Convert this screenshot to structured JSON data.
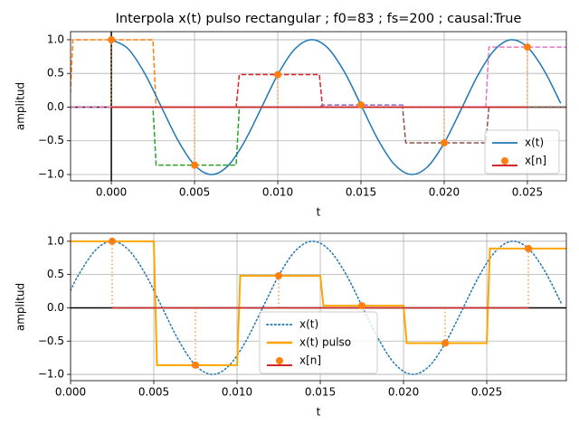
{
  "chart_data": [
    {
      "type": "line",
      "title": "Interpola x(t) pulso rectangular  ; f0=83 ; fs=200 ; causal:True",
      "xlabel": "t",
      "ylabel": "amplitud",
      "xlim": [
        -0.00245,
        0.02734
      ],
      "ylim": [
        -1.094,
        1.12
      ],
      "xticks": [
        {
          "value": 0,
          "label": "0.000"
        },
        {
          "value": 0.005,
          "label": "0.005"
        },
        {
          "value": 0.01,
          "label": "0.010"
        },
        {
          "value": 0.015,
          "label": "0.015"
        },
        {
          "value": 0.02,
          "label": "0.020"
        },
        {
          "value": 0.025,
          "label": "0.025"
        }
      ],
      "yticks": [
        {
          "value": -1,
          "label": "−1.0"
        },
        {
          "value": -0.5,
          "label": "−0.5"
        },
        {
          "value": 0,
          "label": "0.0"
        },
        {
          "value": 0.5,
          "label": "0.5"
        },
        {
          "value": 1,
          "label": "1.0"
        }
      ],
      "grid": true,
      "legend": "lower right",
      "series": [
        {
          "name": "x(t)",
          "color": "#1f77b4",
          "style": "solid",
          "x": [
            0,
            0.001,
            0.002,
            0.003,
            0.004,
            0.005,
            0.006,
            0.007,
            0.008,
            0.009,
            0.01,
            0.011,
            0.012,
            0.013,
            0.014,
            0.015,
            0.016,
            0.017,
            0.018,
            0.019,
            0.02,
            0.021,
            0.022,
            0.023,
            0.024,
            0.025,
            0.026,
            0.027
          ],
          "values": [
            1,
            0.867,
            0.503,
            0.006,
            -0.492,
            -0.861,
            -1.0,
            -0.873,
            -0.513,
            -0.019,
            0.482,
            0.855,
            1.0,
            0.879,
            0.524,
            0.031,
            -0.471,
            -0.848,
            -0.999,
            -0.886,
            -0.533,
            -0.044,
            0.461,
            0.841,
            0.999,
            0.891,
            0.546,
            0.056
          ]
        },
        {
          "name": "x[n]",
          "color": "#ff7f0e",
          "baseline_color": "#d62728",
          "style": "stem",
          "x": [
            0,
            0.005,
            0.01,
            0.015,
            0.02,
            0.025
          ],
          "values": [
            1,
            -0.861,
            0.482,
            0.032,
            -0.531,
            0.891
          ]
        }
      ],
      "pulses": [
        {
          "start": -0.0025,
          "end": 0.0025,
          "value": 1,
          "color": "#ff7f0e"
        },
        {
          "start": 0.0025,
          "end": 0.0075,
          "value": -0.861,
          "color": "#2ca02c"
        },
        {
          "start": 0.0075,
          "end": 0.0125,
          "value": 0.482,
          "color": "#d62728"
        },
        {
          "start": 0.0125,
          "end": 0.0175,
          "value": 0.032,
          "color": "#9467bd"
        },
        {
          "start": 0.0175,
          "end": 0.0225,
          "value": -0.531,
          "color": "#8c564b"
        },
        {
          "start": 0.0225,
          "end": 0.0275,
          "value": 0.891,
          "color": "#e377c2"
        }
      ]
    },
    {
      "type": "line",
      "xlabel": "t",
      "ylabel": "amplitud",
      "xlim": [
        0,
        0.02978
      ],
      "ylim": [
        -1.094,
        1.12
      ],
      "xticks": [
        {
          "value": 0,
          "label": "0.000"
        },
        {
          "value": 0.005,
          "label": "0.005"
        },
        {
          "value": 0.01,
          "label": "0.010"
        },
        {
          "value": 0.015,
          "label": "0.015"
        },
        {
          "value": 0.02,
          "label": "0.020"
        },
        {
          "value": 0.025,
          "label": "0.025"
        }
      ],
      "yticks": [
        {
          "value": -1,
          "label": "−1.0"
        },
        {
          "value": -0.5,
          "label": "−0.5"
        },
        {
          "value": 0,
          "label": "0.0"
        },
        {
          "value": 0.5,
          "label": "0.5"
        },
        {
          "value": 1,
          "label": "1.0"
        }
      ],
      "grid": true,
      "legend": "lower center",
      "series": [
        {
          "name": "x(t)",
          "color": "#1f77b4",
          "style": "dotted",
          "x": [
            0,
            0.0005,
            0.0015,
            0.0025,
            0.0035,
            0.0045,
            0.0055,
            0.0065,
            0.0075,
            0.0085,
            0.0095,
            0.0105,
            0.0115,
            0.0125,
            0.0135,
            0.0145,
            0.0155,
            0.0165,
            0.0175,
            0.0185,
            0.0195,
            0.0205,
            0.0215,
            0.0225,
            0.0235,
            0.0245,
            0.0255,
            0.0265,
            0.0275,
            0.0285,
            0.0295
          ],
          "values": [
            0.264,
            0.503,
            0.867,
            1,
            0.867,
            0.503,
            0.006,
            -0.492,
            -0.861,
            -1.0,
            -0.873,
            -0.513,
            -0.019,
            0.482,
            0.855,
            1.0,
            0.879,
            0.524,
            0.031,
            -0.471,
            -0.848,
            -0.999,
            -0.886,
            -0.533,
            -0.044,
            0.461,
            0.841,
            0.999,
            0.891,
            0.546,
            0.056
          ]
        },
        {
          "name": "x(t) pulso",
          "color": "#ffa500",
          "style": "step",
          "edges": [
            0,
            0.005,
            0.01,
            0.015,
            0.02,
            0.025,
            0.03
          ],
          "values": [
            1,
            -0.861,
            0.482,
            0.032,
            -0.531,
            0.891
          ]
        },
        {
          "name": "x[n]",
          "color": "#ff7f0e",
          "baseline_color": "#d62728",
          "style": "stem",
          "x": [
            0.0025,
            0.0075,
            0.0125,
            0.0175,
            0.0225,
            0.0275
          ],
          "values": [
            1,
            -0.861,
            0.482,
            0.032,
            -0.531,
            0.891
          ]
        }
      ]
    }
  ]
}
